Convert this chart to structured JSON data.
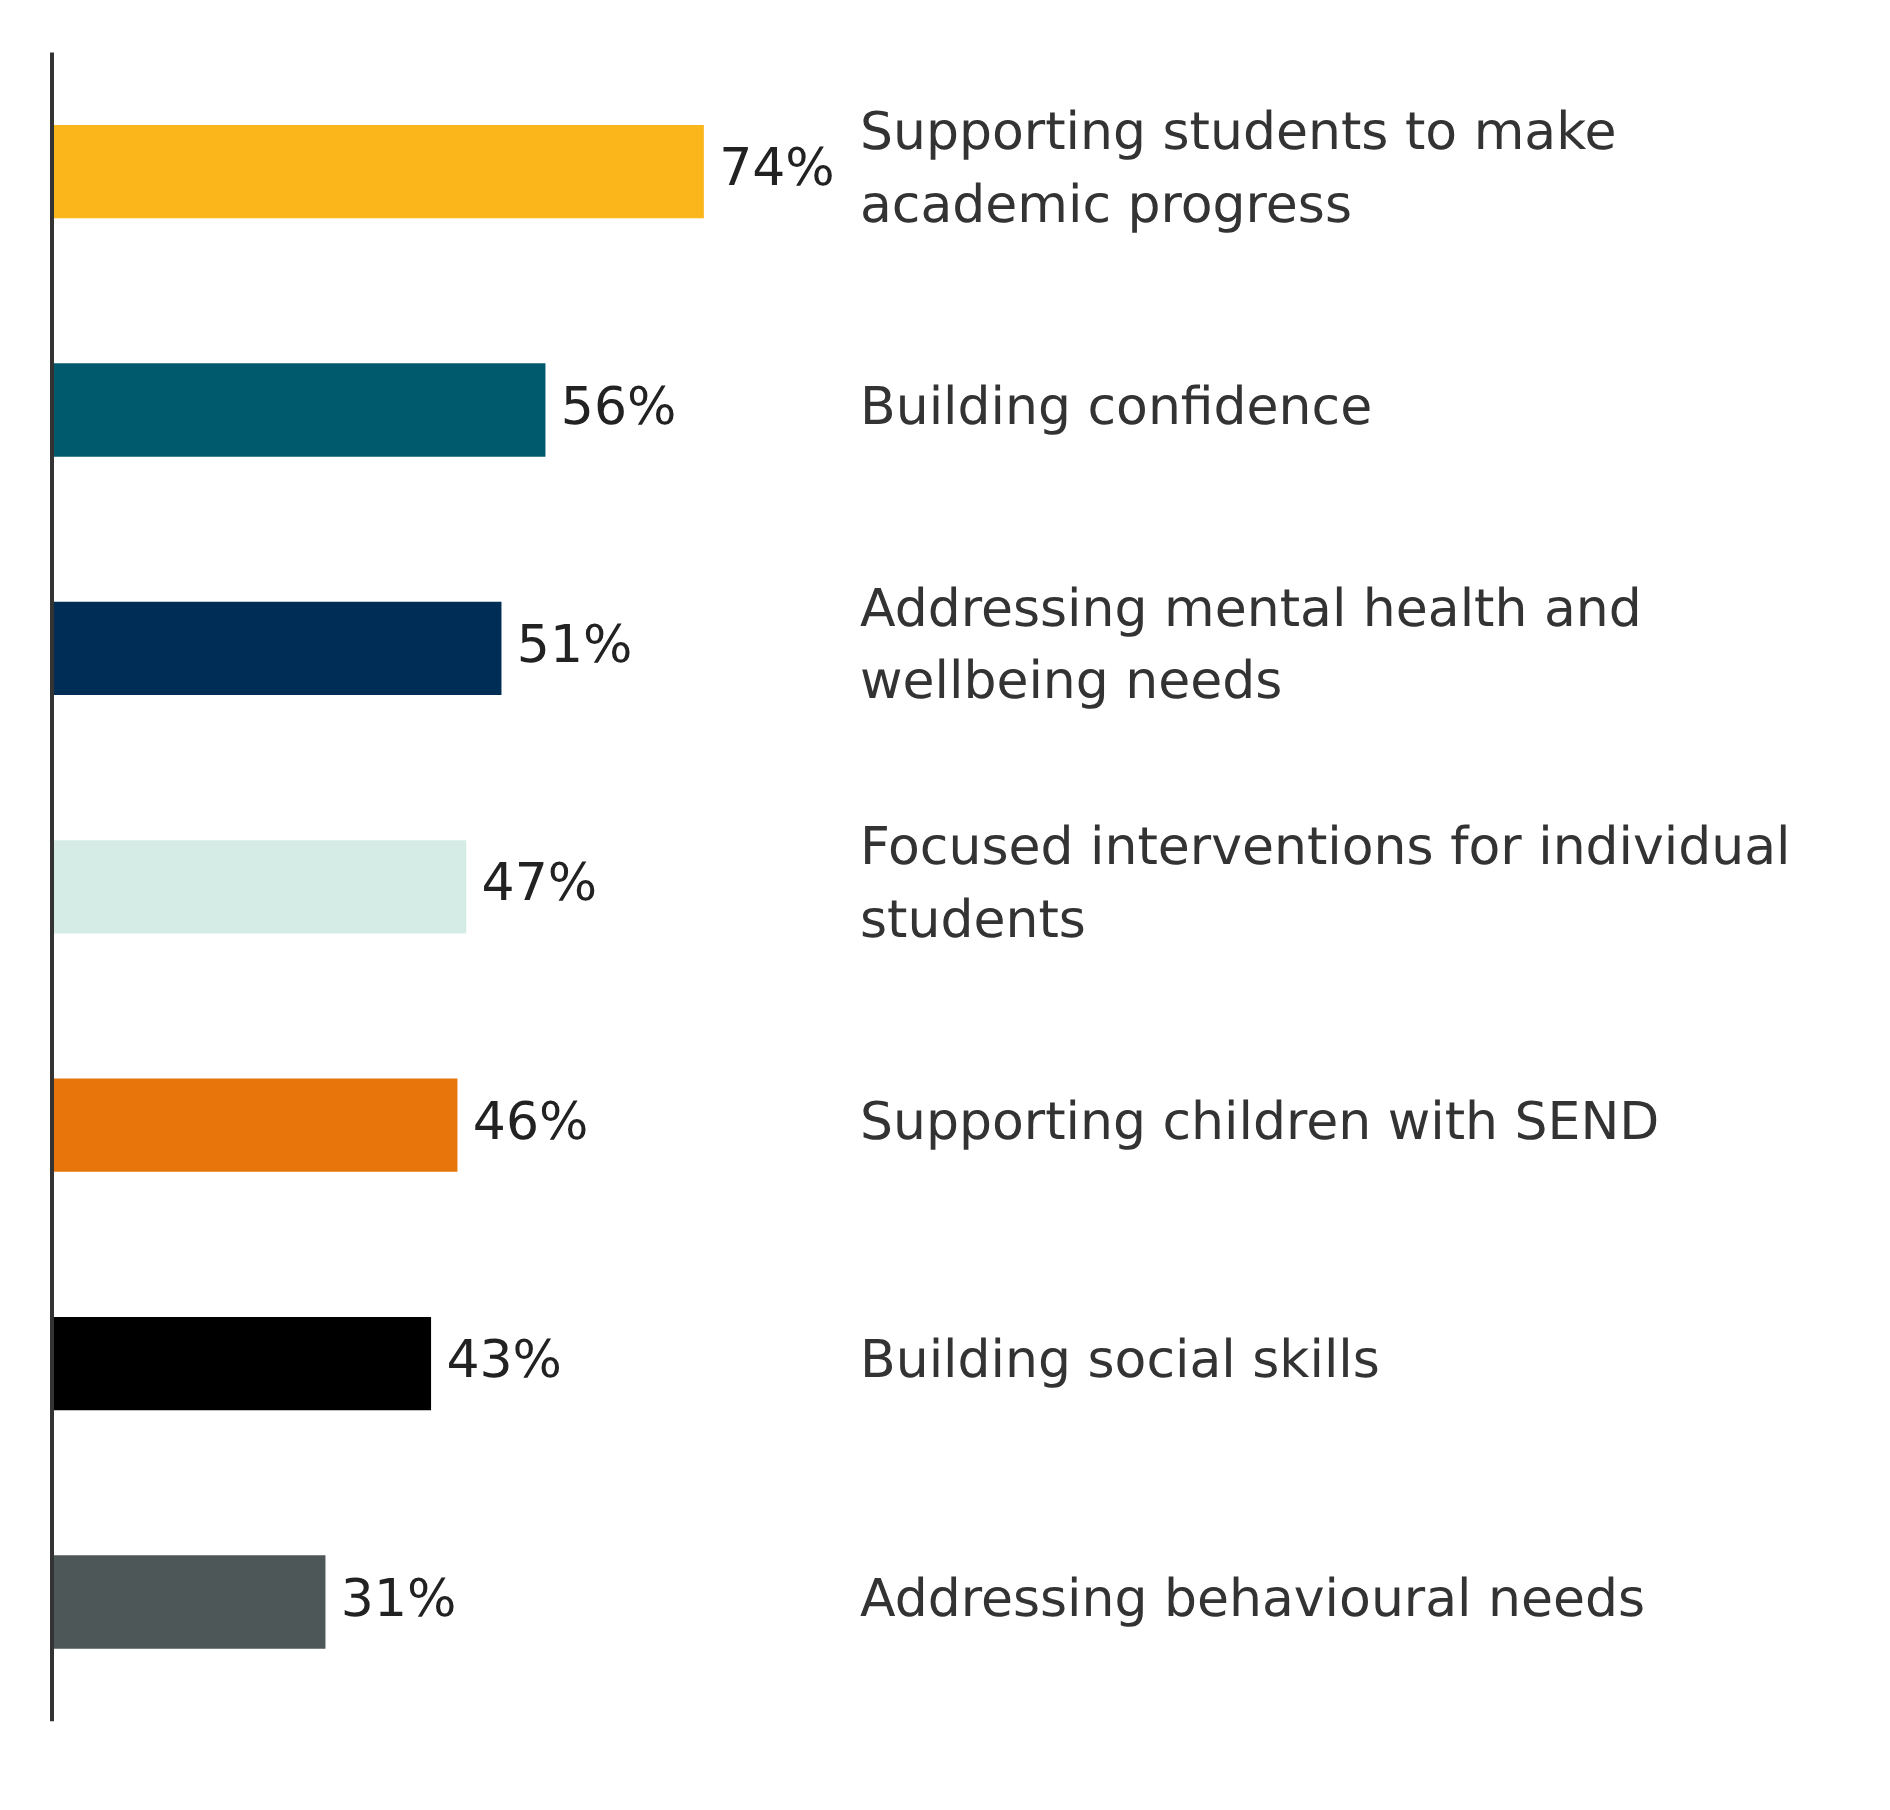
{
  "chart_data": {
    "type": "bar",
    "orientation": "horizontal",
    "categories": [
      "Supporting students to make academic progress",
      "Building confidence",
      "Addressing mental health and wellbeing needs",
      "Focused interventions for individual students",
      "Supporting children with SEND",
      "Building social skills",
      "Addressing behavioural needs"
    ],
    "values": [
      74,
      56,
      51,
      47,
      46,
      43,
      31
    ],
    "colors": [
      "#fbb61b",
      "#005a6e",
      "#002d56",
      "#d5ece6",
      "#e8740c",
      "#000000",
      "#4e5758"
    ],
    "value_labels": [
      "74%",
      "56%",
      "51%",
      "47%",
      "46%",
      "43%",
      "31%"
    ],
    "tick_labels": "y",
    "grid": false,
    "legend": false
  }
}
